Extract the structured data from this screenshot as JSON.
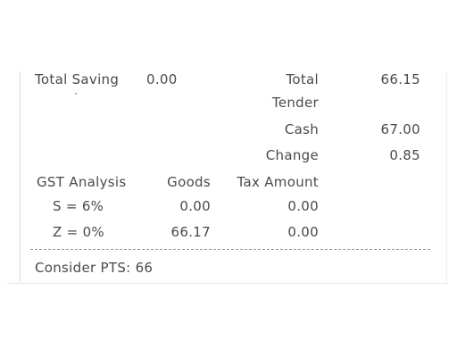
{
  "receipt": {
    "total_saving_label": "Total Saving",
    "total_saving_value": "0.00",
    "total_label_line1": "Total",
    "total_label_line2": "Tender",
    "total_value": "66.15",
    "cash_label": "Cash",
    "cash_value": "67.00",
    "change_label": "Change",
    "change_value": "0.85",
    "gst": {
      "heading": "GST Analysis",
      "goods_header": "Goods",
      "tax_header": "Tax Amount",
      "rows": [
        {
          "code": "S = 6%",
          "goods": "0.00",
          "tax": "0.00"
        },
        {
          "code": "Z = 0%",
          "goods": "66.17",
          "tax": "0.00"
        }
      ]
    },
    "consider_pts": "Consider PTS: 66"
  }
}
